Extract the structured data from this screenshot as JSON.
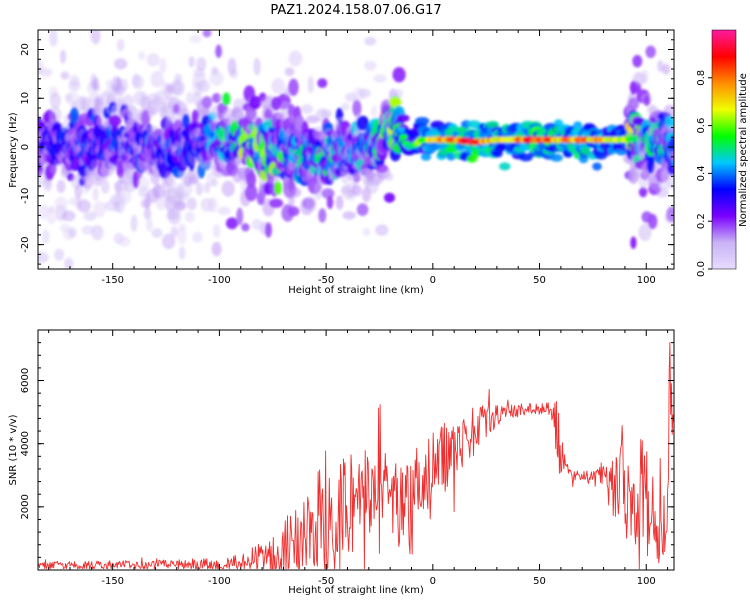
{
  "figure_title": "PAZ1.2024.158.07.06.G17",
  "chart_data": [
    {
      "type": "heatmap",
      "xlabel": "Height of straight line (km)",
      "ylabel": "Frequency (Hz)",
      "xlim": [
        -185,
        113
      ],
      "ylim": [
        -25,
        24
      ],
      "xticks": [
        -150,
        -100,
        -50,
        0,
        50,
        100
      ],
      "yticks": [
        -20,
        -10,
        0,
        10,
        20
      ],
      "colorbar": {
        "label": "Normalized spectral amplitude",
        "range": [
          0,
          1
        ],
        "ticks": [
          0.0,
          0.2,
          0.4,
          0.6,
          0.8
        ],
        "colormap": [
          "#ffffff",
          "#c9b3f5",
          "#7a00ff",
          "#0000ff",
          "#00c8ff",
          "#00ff00",
          "#f0ff00",
          "#ff8c00",
          "#ff0000",
          "#ff1aa0"
        ]
      },
      "ridge": {
        "x": [
          -185,
          -170,
          -150,
          -130,
          -110,
          -100,
          -90,
          -80,
          -70,
          -60,
          -50,
          -40,
          -30,
          -25,
          -22,
          -18,
          -15,
          -12,
          -8,
          -5,
          0,
          10,
          20,
          30,
          40,
          50,
          60,
          70,
          80,
          90,
          100,
          113
        ],
        "y": [
          0.5,
          0.3,
          0.5,
          0.2,
          0.6,
          0.8,
          0.5,
          -0.8,
          -1.5,
          -1.2,
          -1.8,
          -1.0,
          -0.5,
          0.5,
          4.0,
          4.5,
          3.5,
          0.0,
          0.5,
          1.5,
          1.5,
          1.5,
          1.0,
          1.5,
          1.5,
          1.5,
          1.5,
          1.5,
          1.5,
          1.5,
          2.0,
          0.5
        ],
        "amplitude": [
          0.25,
          0.3,
          0.3,
          0.3,
          0.3,
          0.4,
          0.5,
          0.55,
          0.45,
          0.4,
          0.45,
          0.35,
          0.4,
          0.45,
          0.6,
          0.55,
          0.5,
          0.5,
          0.55,
          0.6,
          0.7,
          0.8,
          0.85,
          0.7,
          0.75,
          0.85,
          0.75,
          0.75,
          0.7,
          0.6,
          0.45,
          0.35
        ]
      }
    },
    {
      "type": "line",
      "xlabel": "Height of straight line (km)",
      "ylabel": "SNR (10 * v/v)",
      "xlim": [
        -185,
        113
      ],
      "ylim": [
        0,
        7600
      ],
      "xticks": [
        -150,
        -100,
        -50,
        0,
        50,
        100
      ],
      "yticks": [
        2000,
        4000,
        6000
      ],
      "color": "#f03030",
      "series": [
        {
          "x": [
            -185,
            -170,
            -150,
            -130,
            -110,
            -100,
            -90,
            -80,
            -75,
            -70,
            -60,
            -50,
            -45,
            -40,
            -35,
            -30,
            -27,
            -25,
            -23,
            -20,
            -15,
            -10,
            -5,
            0,
            5,
            10,
            15,
            20,
            25,
            30,
            35,
            40,
            45,
            50,
            55,
            57,
            58,
            59,
            60,
            62,
            65,
            70,
            75,
            80,
            85,
            88,
            90,
            95,
            100,
            105,
            108,
            109,
            110,
            111,
            112,
            113
          ],
          "y": [
            150,
            150,
            160,
            170,
            180,
            200,
            250,
            400,
            700,
            900,
            1200,
            1600,
            1900,
            2100,
            2300,
            2400,
            3000,
            3800,
            2800,
            2100,
            1800,
            2000,
            2500,
            3000,
            3500,
            3900,
            4200,
            4500,
            4700,
            4900,
            5000,
            5050,
            5100,
            5100,
            5100,
            4900,
            4300,
            3800,
            3600,
            3200,
            3000,
            3000,
            3000,
            3000,
            3000,
            2900,
            2700,
            2600,
            2300,
            1400,
            900,
            700,
            1500,
            6500,
            5000,
            4000
          ],
          "spread": [
            120,
            120,
            140,
            150,
            160,
            200,
            250,
            500,
            900,
            1200,
            1500,
            1800,
            1800,
            1800,
            1700,
            1500,
            1700,
            1800,
            1600,
            1600,
            1500,
            1600,
            1500,
            1400,
            1200,
            1000,
            900,
            700,
            500,
            350,
            250,
            200,
            200,
            200,
            200,
            400,
            1200,
            1200,
            900,
            400,
            200,
            150,
            150,
            300,
            700,
            1500,
            1800,
            1800,
            1800,
            1400,
            800,
            600,
            800,
            1200,
            1200,
            800
          ]
        }
      ]
    }
  ]
}
